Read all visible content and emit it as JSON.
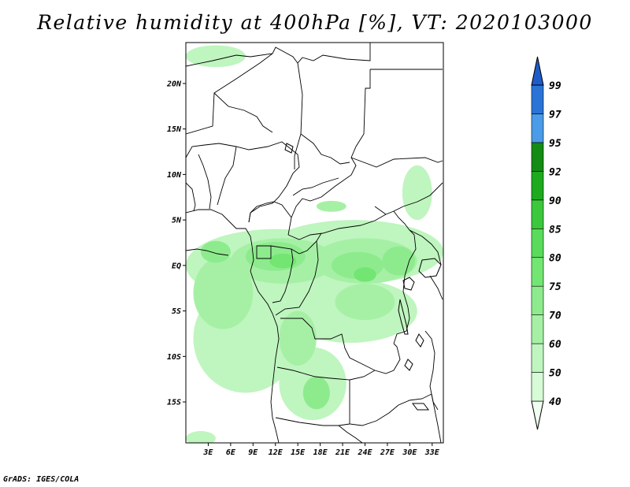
{
  "title": "Relative humidity at 400hPa [%], VT: 2020103000",
  "credit": "GrADS: IGES/COLA",
  "map": {
    "lon_range": [
      0,
      34.5
    ],
    "lat_range": [
      -19.5,
      24.5
    ],
    "lat_ticks": [
      {
        "value": 20,
        "label": "20N"
      },
      {
        "value": 15,
        "label": "15N"
      },
      {
        "value": 10,
        "label": "10N"
      },
      {
        "value": 5,
        "label": "5N"
      },
      {
        "value": 0,
        "label": "EQ"
      },
      {
        "value": -5,
        "label": "5S"
      },
      {
        "value": -10,
        "label": "10S"
      },
      {
        "value": -15,
        "label": "15S"
      }
    ],
    "lon_ticks": [
      {
        "value": 3,
        "label": "3E"
      },
      {
        "value": 6,
        "label": "6E"
      },
      {
        "value": 9,
        "label": "9E"
      },
      {
        "value": 12,
        "label": "12E"
      },
      {
        "value": 15,
        "label": "15E"
      },
      {
        "value": 18,
        "label": "18E"
      },
      {
        "value": 21,
        "label": "21E"
      },
      {
        "value": 24,
        "label": "24E"
      },
      {
        "value": 27,
        "label": "27E"
      },
      {
        "value": 30,
        "label": "30E"
      },
      {
        "value": 33,
        "label": "33E"
      }
    ]
  },
  "colorbar": {
    "levels": [
      "40",
      "50",
      "60",
      "70",
      "75",
      "80",
      "85",
      "90",
      "92",
      "95",
      "97",
      "99"
    ],
    "colors": [
      "#f0fff0",
      "#d7fad7",
      "#bff5bf",
      "#a6f0a6",
      "#8deb8d",
      "#73e573",
      "#5adc5a",
      "#3cc83c",
      "#1eaa1e",
      "#148c14",
      "#4a9be8",
      "#2a74d8",
      "#1e5cc8"
    ]
  },
  "humidity_regions": [
    {
      "level": 1,
      "lon": 22.5,
      "lat": 1.5,
      "rlon": 12,
      "rlat": 3.5
    },
    {
      "level": 1,
      "lon": 12,
      "lat": 0,
      "rlon": 12,
      "rlat": 4
    },
    {
      "level": 1,
      "lon": 8,
      "lat": -8,
      "rlon": 7,
      "rlat": 6
    },
    {
      "level": 1,
      "lon": 22,
      "lat": -5,
      "rlon": 9,
      "rlat": 3.5
    },
    {
      "level": 1,
      "lon": 17,
      "lat": -13,
      "rlon": 4.5,
      "rlat": 4
    },
    {
      "level": 1,
      "lon": 31,
      "lat": 8,
      "rlon": 2,
      "rlat": 3
    },
    {
      "level": 1,
      "lon": 4,
      "lat": 23,
      "rlon": 4,
      "rlat": 1.2
    },
    {
      "level": 1,
      "lon": 2,
      "lat": -19,
      "rlon": 2,
      "rlat": 0.8
    },
    {
      "level": 2,
      "lon": 13,
      "lat": 0.5,
      "rlon": 7,
      "rlat": 2.5
    },
    {
      "level": 2,
      "lon": 24,
      "lat": 0.5,
      "rlon": 7,
      "rlat": 2.5
    },
    {
      "level": 2,
      "lon": 5,
      "lat": -3,
      "rlon": 4,
      "rlat": 4
    },
    {
      "level": 2,
      "lon": 15,
      "lat": -8,
      "rlon": 2.5,
      "rlat": 3
    },
    {
      "level": 2,
      "lon": 24,
      "lat": -4,
      "rlon": 4,
      "rlat": 2
    },
    {
      "level": 2,
      "lon": 19.5,
      "lat": 6.5,
      "rlon": 2,
      "rlat": 0.6
    },
    {
      "level": 3,
      "lon": 12,
      "lat": 1,
      "rlon": 4,
      "rlat": 1.6
    },
    {
      "level": 3,
      "lon": 23,
      "lat": 0,
      "rlon": 3.5,
      "rlat": 1.5
    },
    {
      "level": 3,
      "lon": 17.5,
      "lat": -14,
      "rlon": 1.8,
      "rlat": 1.8
    },
    {
      "level": 3,
      "lon": 4,
      "lat": 1.5,
      "rlon": 2,
      "rlat": 1.2
    },
    {
      "level": 3,
      "lon": 28.5,
      "lat": 0.5,
      "rlon": 2.2,
      "rlat": 1.6
    },
    {
      "level": 4,
      "lon": 13,
      "lat": 0.5,
      "rlon": 1.8,
      "rlat": 0.8
    },
    {
      "level": 4,
      "lon": 24,
      "lat": -1,
      "rlon": 1.5,
      "rlat": 0.8
    }
  ]
}
